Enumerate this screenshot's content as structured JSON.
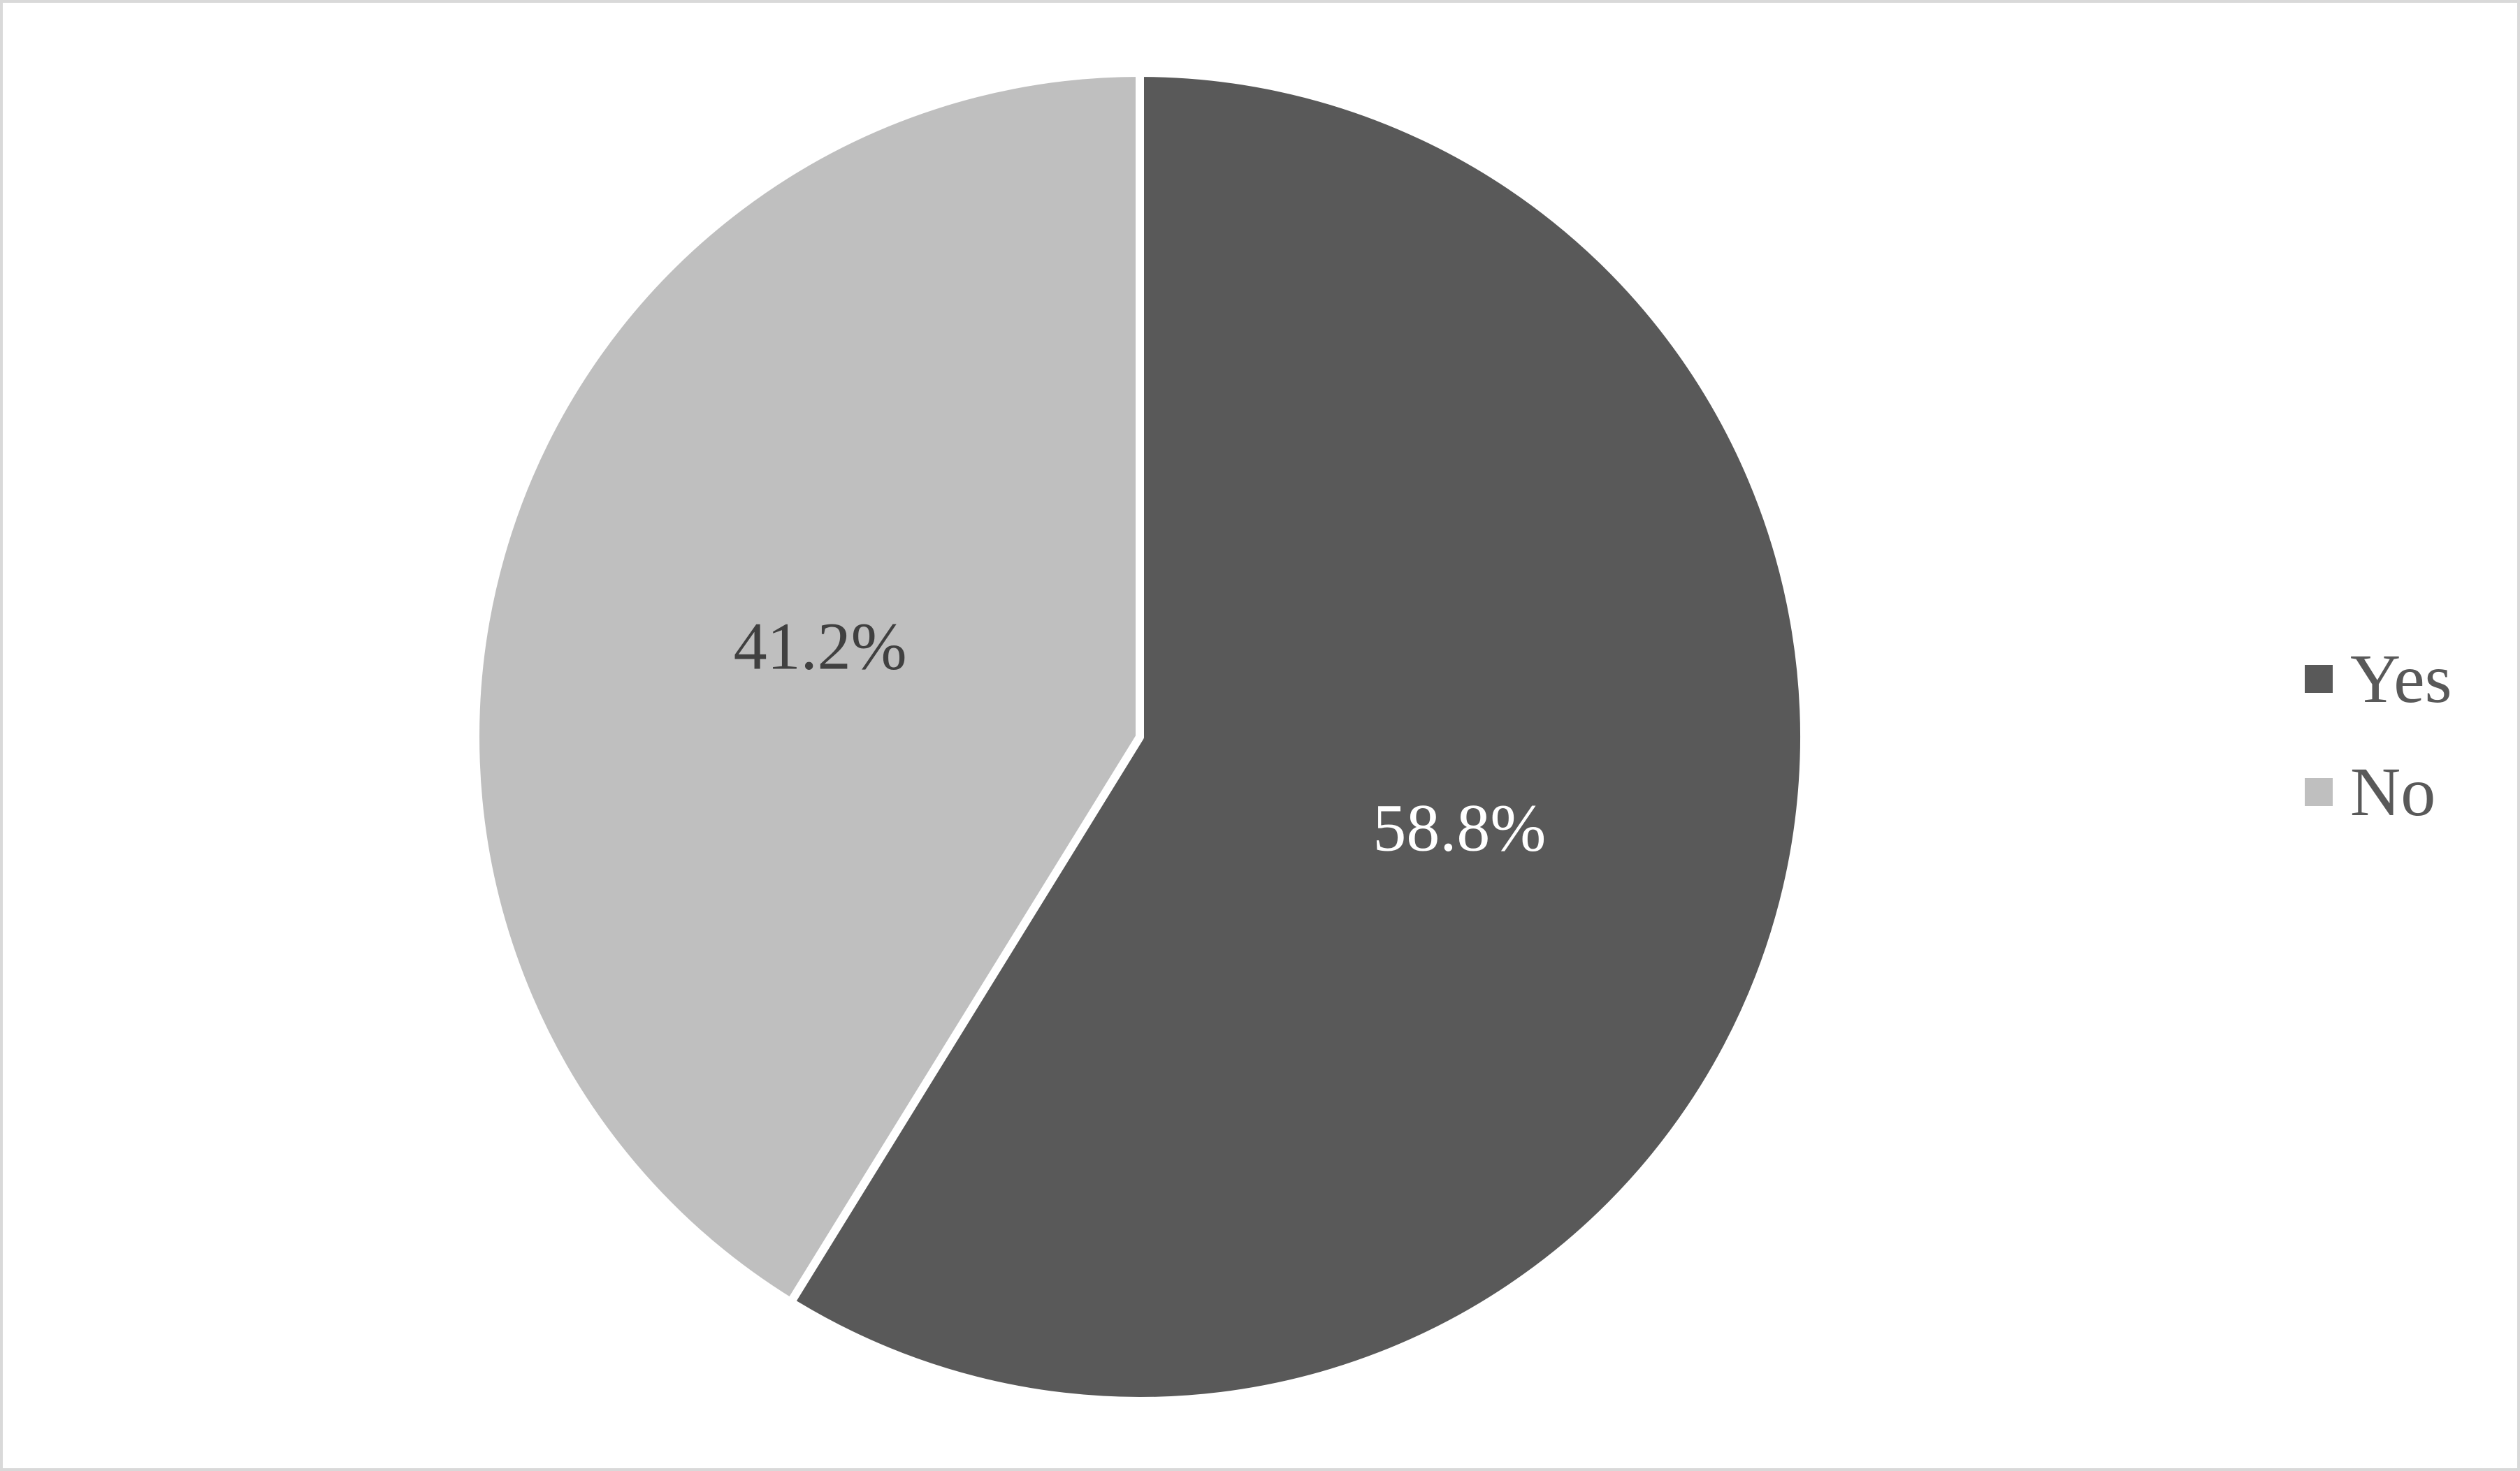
{
  "chart_data": {
    "type": "pie",
    "categories": [
      "Yes",
      "No"
    ],
    "values": [
      58.8,
      41.2
    ],
    "slice_labels": [
      "58.8%",
      "41.2%"
    ],
    "colors": [
      "#595959",
      "#BFBFBF"
    ],
    "label_colors": [
      "#FFFFFF",
      "#404040"
    ],
    "separator_color": "#FFFFFF",
    "start_angle_deg": 0,
    "direction": "clockwise",
    "legend_position": "right",
    "title": "",
    "background_color": "#FFFFFF",
    "border_color": "#D9D9D9"
  },
  "legend": {
    "items": [
      {
        "label": "Yes",
        "color": "#595959"
      },
      {
        "label": "No",
        "color": "#BFBFBF"
      }
    ]
  }
}
